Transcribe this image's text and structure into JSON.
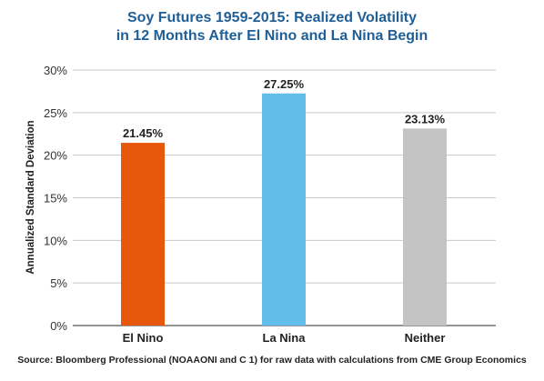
{
  "chart_data": {
    "type": "bar",
    "title_lines": [
      "Soy Futures 1959-2015: Realized Volatility",
      "in 12 Months After El Nino and La Nina Begin"
    ],
    "categories": [
      "El Nino",
      "La Nina",
      "Neither"
    ],
    "values": [
      21.45,
      27.25,
      23.13
    ],
    "value_labels": [
      "21.45%",
      "27.25%",
      "23.13%"
    ],
    "bar_colors": [
      "#e8580c",
      "#63bdea",
      "#c4c4c4"
    ],
    "ylabel": "Annualized Standard Deviation",
    "ylim": [
      0,
      30
    ],
    "yticks": [
      0,
      5,
      10,
      15,
      20,
      25,
      30
    ],
    "ytick_labels": [
      "0%",
      "5%",
      "10%",
      "15%",
      "20%",
      "25%",
      "30%"
    ],
    "grid": true,
    "source": "Source: Bloomberg Professional (NOAAONI and C 1) for raw data with calculations from CME Group Economics"
  }
}
